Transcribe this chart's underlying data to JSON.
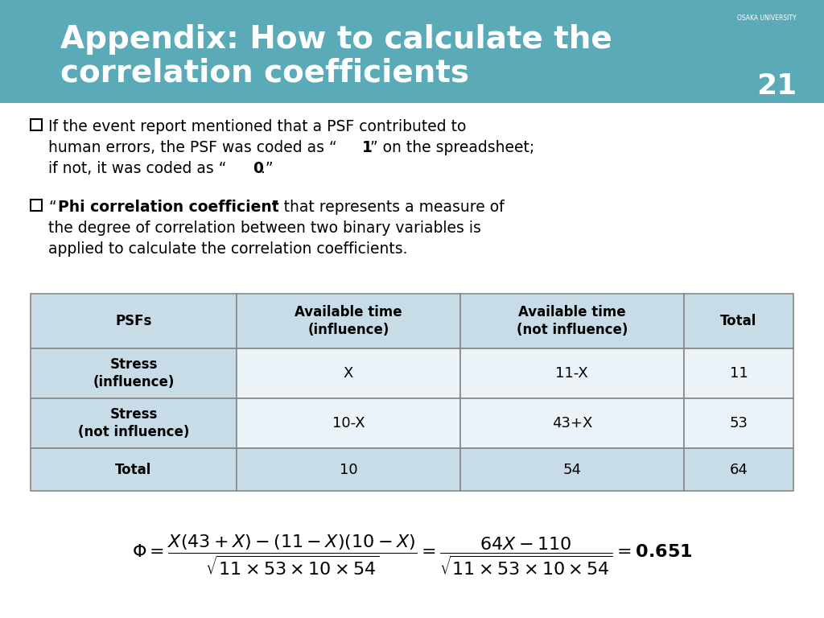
{
  "title_line1": "Appendix: How to calculate the",
  "title_line2": "correlation coefficients",
  "slide_number": "21",
  "header_bg_color": "#5BAAB8",
  "header_text_color": "#FFFFFF",
  "body_bg_color": "#FFFFFF",
  "table_header_bg": "#C8DCE8",
  "table_row_bg": "#EBF3F8",
  "table_border_color": "#888888",
  "col_headers": [
    "PSFs",
    "Available time\n(influence)",
    "Available time\n(not influence)",
    "Total"
  ],
  "row1_label": "Stress\n(influence)",
  "row1_data": [
    "X",
    "11-X",
    "11"
  ],
  "row2_label": "Stress\n(not influence)",
  "row2_data": [
    "10-X",
    "43+X",
    "53"
  ],
  "row3_label": "Total",
  "row3_data": [
    "10",
    "54",
    "64"
  ]
}
